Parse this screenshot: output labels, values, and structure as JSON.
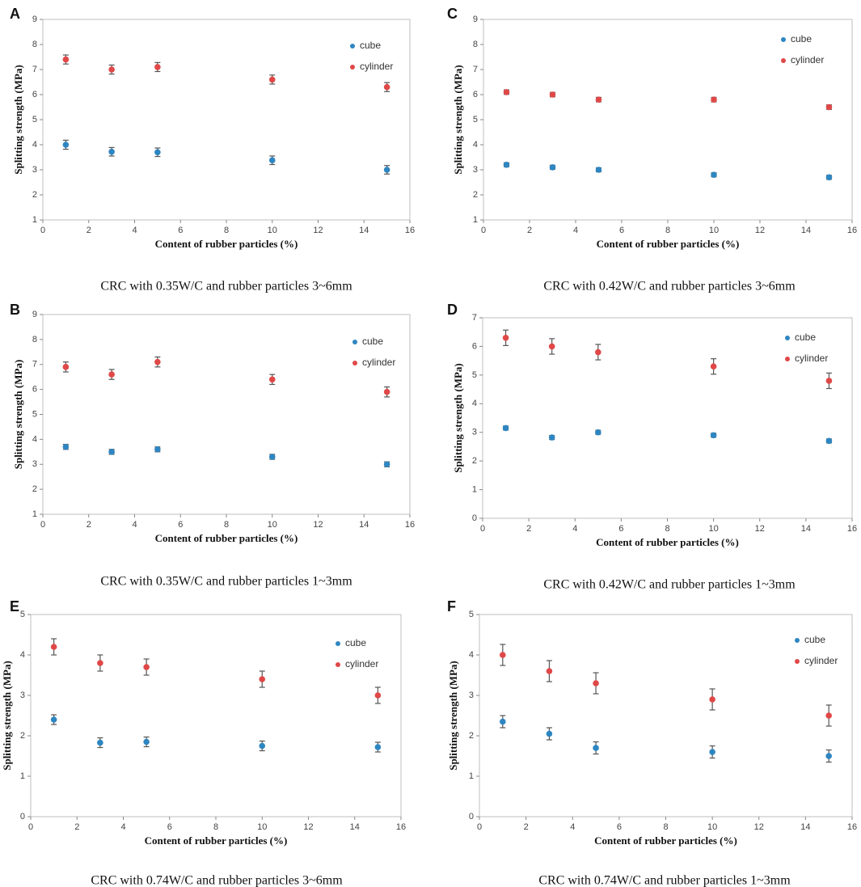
{
  "chart_data": [
    {
      "type": "scatter",
      "panel": "A",
      "caption": "CRC with 0.35W/C and rubber particles 3~6mm",
      "xlabel": "Content of rubber particles (%)",
      "ylabel": "Splitting strength (MPa)",
      "xlim": [
        0,
        16
      ],
      "xticks": [
        0,
        2,
        4,
        6,
        8,
        10,
        12,
        14,
        16
      ],
      "ylim": [
        1,
        9
      ],
      "yticks": [
        1,
        2,
        3,
        4,
        5,
        6,
        7,
        8,
        9
      ],
      "series": [
        {
          "name": "cube",
          "color": "#2e86c1",
          "x": [
            1,
            3,
            5,
            10,
            15
          ],
          "y": [
            4.0,
            3.72,
            3.7,
            3.38,
            3.0
          ],
          "err": [
            0.18,
            0.17,
            0.17,
            0.17,
            0.17
          ]
        },
        {
          "name": "cylinder",
          "color": "#e04848",
          "x": [
            1,
            3,
            5,
            10,
            15
          ],
          "y": [
            7.4,
            7.0,
            7.1,
            6.6,
            6.3
          ],
          "err": [
            0.18,
            0.18,
            0.18,
            0.18,
            0.18
          ]
        }
      ]
    },
    {
      "type": "scatter",
      "panel": "C",
      "caption": "CRC with 0.42W/C and rubber particles 3~6mm",
      "xlabel": "Content of rubber particles (%)",
      "ylabel": "Splitting strength (MPa)",
      "xlim": [
        0,
        16
      ],
      "xticks": [
        0,
        2,
        4,
        6,
        8,
        10,
        12,
        14,
        16
      ],
      "ylim": [
        1,
        9
      ],
      "yticks": [
        1,
        2,
        3,
        4,
        5,
        6,
        7,
        8,
        9
      ],
      "series": [
        {
          "name": "cube",
          "color": "#2e86c1",
          "x": [
            1,
            3,
            5,
            10,
            15
          ],
          "y": [
            3.2,
            3.1,
            3.0,
            2.8,
            2.7
          ],
          "err": [
            0.08,
            0.08,
            0.08,
            0.08,
            0.08
          ]
        },
        {
          "name": "cylinder",
          "color": "#e04848",
          "x": [
            1,
            3,
            5,
            10,
            15
          ],
          "y": [
            6.1,
            6.0,
            5.8,
            5.8,
            5.5
          ],
          "err": [
            0.09,
            0.09,
            0.09,
            0.09,
            0.09
          ]
        }
      ]
    },
    {
      "type": "scatter",
      "panel": "B",
      "caption": "CRC with 0.35W/C and rubber particles 1~3mm",
      "xlabel": "Content of rubber particles (%)",
      "ylabel": "Splitting strength (MPa)",
      "xlim": [
        0,
        16
      ],
      "xticks": [
        0,
        2,
        4,
        6,
        8,
        10,
        12,
        14,
        16
      ],
      "ylim": [
        1,
        9
      ],
      "yticks": [
        1,
        2,
        3,
        4,
        5,
        6,
        7,
        8,
        9
      ],
      "series": [
        {
          "name": "cube",
          "color": "#2e86c1",
          "x": [
            1,
            3,
            5,
            10,
            15
          ],
          "y": [
            3.7,
            3.5,
            3.6,
            3.3,
            3.0
          ],
          "err": [
            0.1,
            0.1,
            0.1,
            0.1,
            0.1
          ]
        },
        {
          "name": "cylinder",
          "color": "#e04848",
          "x": [
            1,
            3,
            5,
            10,
            15
          ],
          "y": [
            6.9,
            6.6,
            7.1,
            6.4,
            5.9
          ],
          "err": [
            0.2,
            0.2,
            0.2,
            0.2,
            0.2
          ]
        }
      ]
    },
    {
      "type": "scatter",
      "panel": "D",
      "caption": "CRC with 0.42W/C and rubber particles 1~3mm",
      "xlabel": "Content of rubber particles (%)",
      "ylabel": "Splitting strength (MPa)",
      "xlim": [
        0,
        16
      ],
      "xticks": [
        0,
        2,
        4,
        6,
        8,
        10,
        12,
        14,
        16
      ],
      "ylim": [
        0,
        7
      ],
      "yticks": [
        0,
        1,
        2,
        3,
        4,
        5,
        6,
        7
      ],
      "series": [
        {
          "name": "cube",
          "color": "#2e86c1",
          "x": [
            1,
            3,
            5,
            10,
            15
          ],
          "y": [
            3.15,
            2.82,
            3.0,
            2.9,
            2.7
          ],
          "err": [
            0.07,
            0.07,
            0.07,
            0.07,
            0.07
          ]
        },
        {
          "name": "cylinder",
          "color": "#e04848",
          "x": [
            1,
            3,
            5,
            10,
            15
          ],
          "y": [
            6.3,
            6.0,
            5.8,
            5.3,
            4.8
          ],
          "err": [
            0.27,
            0.27,
            0.27,
            0.27,
            0.27
          ]
        }
      ]
    },
    {
      "type": "scatter",
      "panel": "E",
      "caption": "CRC with 0.74W/C and rubber particles 3~6mm",
      "xlabel": "Content of rubber particles (%)",
      "ylabel": "Splitting strength (MPa)",
      "xlim": [
        0,
        16
      ],
      "xticks": [
        0,
        2,
        4,
        6,
        8,
        10,
        12,
        14,
        16
      ],
      "ylim": [
        0,
        5
      ],
      "yticks": [
        0,
        1,
        2,
        3,
        4,
        5
      ],
      "series": [
        {
          "name": "cube",
          "color": "#2e86c1",
          "x": [
            1,
            3,
            5,
            10,
            15
          ],
          "y": [
            2.4,
            1.83,
            1.85,
            1.75,
            1.72
          ],
          "err": [
            0.12,
            0.12,
            0.12,
            0.12,
            0.12
          ]
        },
        {
          "name": "cylinder",
          "color": "#e04848",
          "x": [
            1,
            3,
            5,
            10,
            15
          ],
          "y": [
            4.2,
            3.8,
            3.7,
            3.4,
            3.0
          ],
          "err": [
            0.2,
            0.2,
            0.2,
            0.2,
            0.2
          ]
        }
      ]
    },
    {
      "type": "scatter",
      "panel": "F",
      "caption": "CRC with 0.74W/C and rubber particles 1~3mm",
      "xlabel": "Content of rubber particles (%)",
      "ylabel": "Splitting strength (MPa)",
      "xlim": [
        0,
        16
      ],
      "xticks": [
        0,
        2,
        4,
        6,
        8,
        10,
        12,
        14,
        16
      ],
      "ylim": [
        0,
        5
      ],
      "yticks": [
        0,
        1,
        2,
        3,
        4,
        5
      ],
      "series": [
        {
          "name": "cube",
          "color": "#2e86c1",
          "x": [
            1,
            3,
            5,
            10,
            15
          ],
          "y": [
            2.35,
            2.05,
            1.7,
            1.6,
            1.5
          ],
          "err": [
            0.15,
            0.15,
            0.15,
            0.15,
            0.15
          ]
        },
        {
          "name": "cylinder",
          "color": "#e04848",
          "x": [
            1,
            3,
            5,
            10,
            15
          ],
          "y": [
            4.0,
            3.6,
            3.3,
            2.9,
            2.5
          ],
          "err": [
            0.26,
            0.26,
            0.26,
            0.26,
            0.26
          ]
        }
      ]
    }
  ]
}
